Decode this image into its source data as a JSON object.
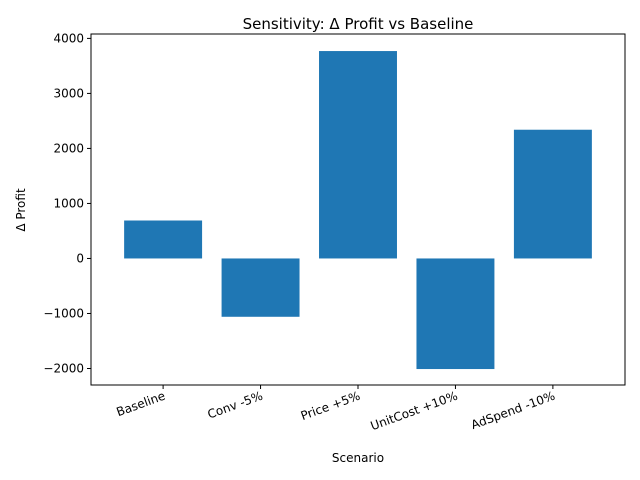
{
  "chart_data": {
    "type": "bar",
    "title": "Sensitivity: Δ Profit vs Baseline",
    "xlabel": "Scenario",
    "ylabel": "Δ Profit",
    "categories": [
      "Baseline",
      "Conv -5%",
      "Price +5%",
      "UnitCost +10%",
      "AdSpend -10%"
    ],
    "values": [
      690,
      -1060,
      3770,
      -2010,
      2340
    ],
    "ylim": [
      -2300,
      4080
    ],
    "yticks": [
      -2000,
      -1000,
      0,
      1000,
      2000,
      3000,
      4000
    ],
    "ytick_labels": [
      "−2000",
      "−1000",
      "0",
      "1000",
      "2000",
      "3000",
      "4000"
    ],
    "bar_color": "#1f77b4",
    "grid": false,
    "legend": "none"
  }
}
